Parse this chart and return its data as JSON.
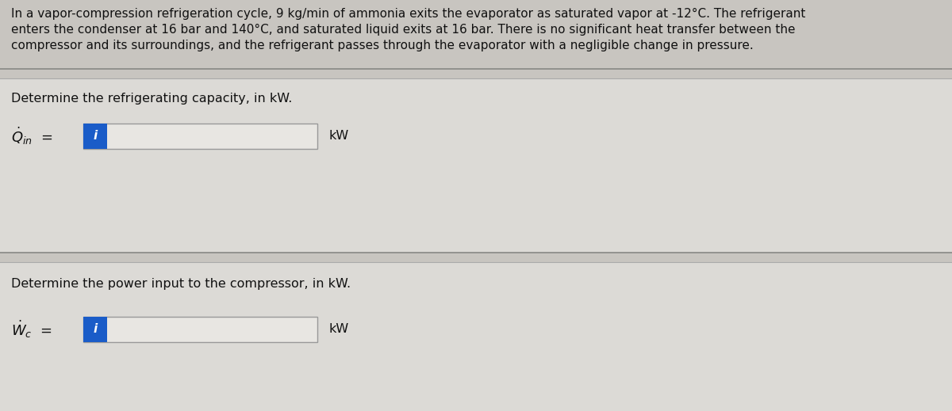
{
  "background_color": "#c8c5c0",
  "section_bg": "#dcdad6",
  "header_text_line1": "In a vapor-compression refrigeration cycle, 9 kg/min of ammonia exits the evaporator as saturated vapor at -12°C. The refrigerant",
  "header_text_line2": "enters the condenser at 16 bar and 140°C, and saturated liquid exits at 16 bar. There is no significant heat transfer between the",
  "header_text_line3": "compressor and its surroundings, and the refrigerant passes through the evaporator with a negligible change in pressure.",
  "section1_label": "Determine the refrigerating capacity, in kW.",
  "section1_symbol_Q": "$\\dot{Q}$",
  "section1_symbol_sub": "in",
  "section1_unit": "kW",
  "section2_label": "Determine the power input to the compressor, in kW.",
  "section2_symbol_W": "$\\dot{W}$",
  "section2_symbol_sub": "c",
  "section2_unit": "kW",
  "input_box_color": "#1a5cc8",
  "input_box_border": "#999999",
  "input_fill": "#e8e6e2",
  "line_color": "#888885",
  "line_color2": "#aaaaaa",
  "text_color": "#111111",
  "header_fontsize": 11.0,
  "label_fontsize": 11.5,
  "symbol_fontsize": 13,
  "fig_width": 12.0,
  "fig_height": 5.19,
  "dpi": 100
}
